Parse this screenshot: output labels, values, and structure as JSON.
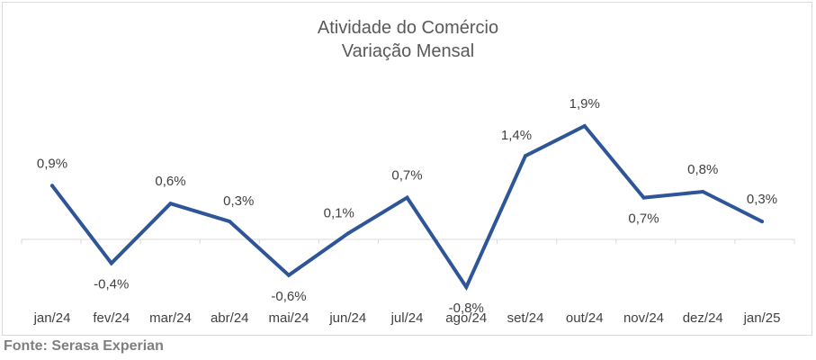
{
  "chart_data": {
    "type": "line",
    "title": "Atividade do Comércio",
    "subtitle": "Variação Mensal",
    "categories": [
      "jan/24",
      "fev/24",
      "mar/24",
      "abr/24",
      "mai/24",
      "jun/24",
      "jul/24",
      "ago/24",
      "set/24",
      "out/24",
      "nov/24",
      "dez/24",
      "jan/25"
    ],
    "series": [
      {
        "values": [
          0.9,
          -0.4,
          0.6,
          0.3,
          -0.6,
          0.1,
          0.7,
          -0.8,
          1.4,
          1.9,
          0.7,
          0.8,
          0.3
        ]
      }
    ],
    "data_labels": [
      "0,9%",
      "-0,4%",
      "0,6%",
      "0,3%",
      "-0,6%",
      "0,1%",
      "0,7%",
      "-0,8%",
      "1,4%",
      "1,9%",
      "0,7%",
      "0,8%",
      "0,3%"
    ],
    "line_color": "#2e5597",
    "grid": false,
    "legend": "none",
    "xlabel": "",
    "ylabel": ""
  },
  "source": "Fonte: Serasa Experian"
}
